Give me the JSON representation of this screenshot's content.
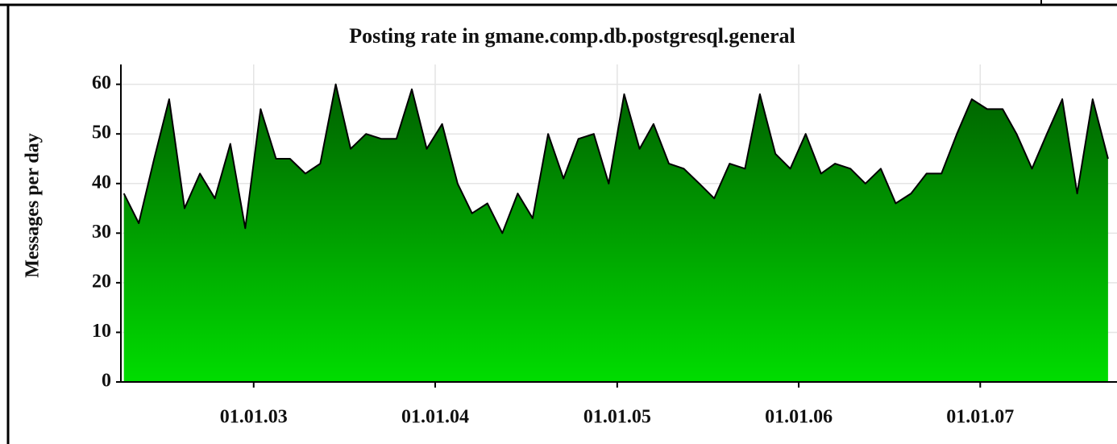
{
  "chart_data": {
    "type": "area",
    "title": "Posting rate in gmane.comp.db.postgresql.general",
    "y_label": "Messages per day",
    "x": [
      "15.04.02",
      "15.05.02",
      "15.06.02",
      "15.07.02",
      "15.08.02",
      "15.09.02",
      "15.10.02",
      "15.11.02",
      "15.12.02",
      "15.01.03",
      "15.02.03",
      "15.03.03",
      "15.04.03",
      "15.05.03",
      "15.06.03",
      "15.07.03",
      "15.08.03",
      "15.09.03",
      "15.10.03",
      "15.11.03",
      "15.12.03",
      "15.01.04",
      "15.02.04",
      "15.03.04",
      "15.04.04",
      "15.05.04",
      "15.06.04",
      "15.07.04",
      "15.08.04",
      "15.09.04",
      "15.10.04",
      "15.11.04",
      "15.12.04",
      "15.01.05",
      "15.02.05",
      "15.03.05",
      "15.04.05",
      "15.05.05",
      "15.06.05",
      "15.07.05",
      "15.08.05",
      "15.09.05",
      "15.10.05",
      "15.11.05",
      "15.12.05",
      "15.01.06",
      "15.02.06",
      "15.03.06",
      "15.04.06",
      "15.05.06",
      "15.06.06",
      "15.07.06",
      "15.08.06",
      "15.09.06",
      "15.10.06",
      "15.11.06",
      "15.12.06",
      "15.01.07",
      "15.02.07",
      "15.03.07",
      "15.04.07",
      "15.05.07",
      "15.06.07",
      "15.07.07",
      "15.08.07",
      "15.09.07"
    ],
    "values": [
      38,
      32,
      45,
      57,
      35,
      42,
      37,
      48,
      31,
      55,
      45,
      45,
      42,
      44,
      60,
      47,
      50,
      49,
      49,
      59,
      47,
      52,
      40,
      34,
      36,
      30,
      38,
      33,
      50,
      41,
      49,
      50,
      40,
      58,
      47,
      52,
      44,
      43,
      40,
      37,
      44,
      43,
      58,
      46,
      43,
      50,
      42,
      44,
      43,
      40,
      43,
      36,
      38,
      42,
      42,
      50,
      57,
      55,
      55,
      50,
      43,
      50,
      57,
      38,
      57,
      45
    ],
    "color_top": "#006000",
    "color_bottom": "#00dd00",
    "line_color": "#000000",
    "xlim": [
      "09.04.02",
      "03.10.07"
    ],
    "xticks": [
      "01.01.03",
      "01.01.04",
      "01.01.05",
      "01.01.06",
      "01.01.07"
    ],
    "ylim": [
      0,
      64
    ],
    "yticks": [
      0,
      10,
      20,
      30,
      40,
      50,
      60
    ],
    "grid": true
  }
}
